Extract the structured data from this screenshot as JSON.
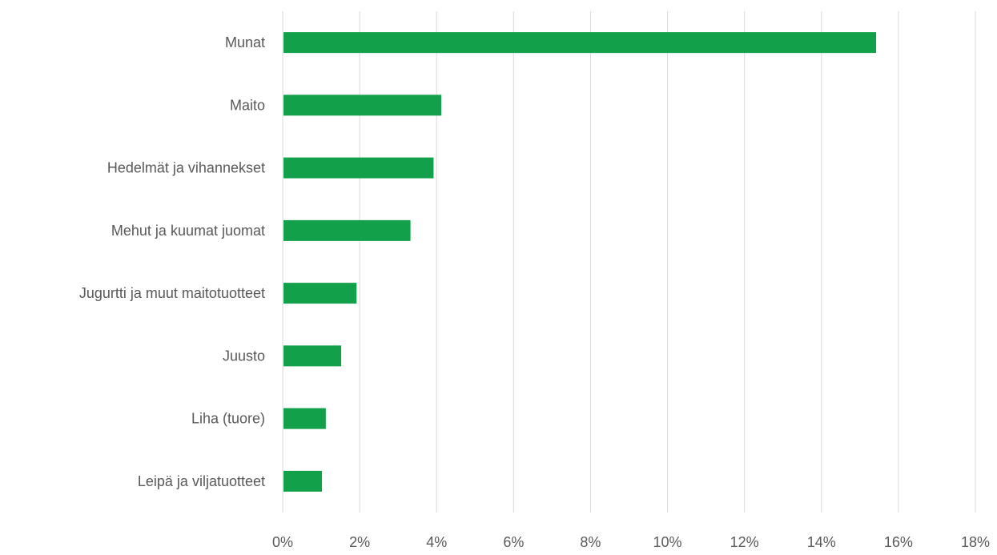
{
  "chart_data": {
    "type": "bar",
    "orientation": "horizontal",
    "categories": [
      "Munat",
      "Maito",
      "Hedelmät ja vihannekset",
      "Mehut ja kuumat juomat",
      "Jugurtti ja muut maitotuotteet",
      "Juusto",
      "Liha (tuore)",
      "Leipä ja viljatuotteet"
    ],
    "values": [
      15.4,
      4.1,
      3.9,
      3.3,
      1.9,
      1.5,
      1.1,
      1.0
    ],
    "x_ticks": [
      "0%",
      "2%",
      "4%",
      "6%",
      "8%",
      "10%",
      "12%",
      "14%",
      "16%",
      "18%"
    ],
    "xlim": [
      0,
      18
    ],
    "grid": true,
    "bar_color": "#13a04a",
    "grid_color": "#d9d9d9",
    "text_color": "#595959"
  }
}
